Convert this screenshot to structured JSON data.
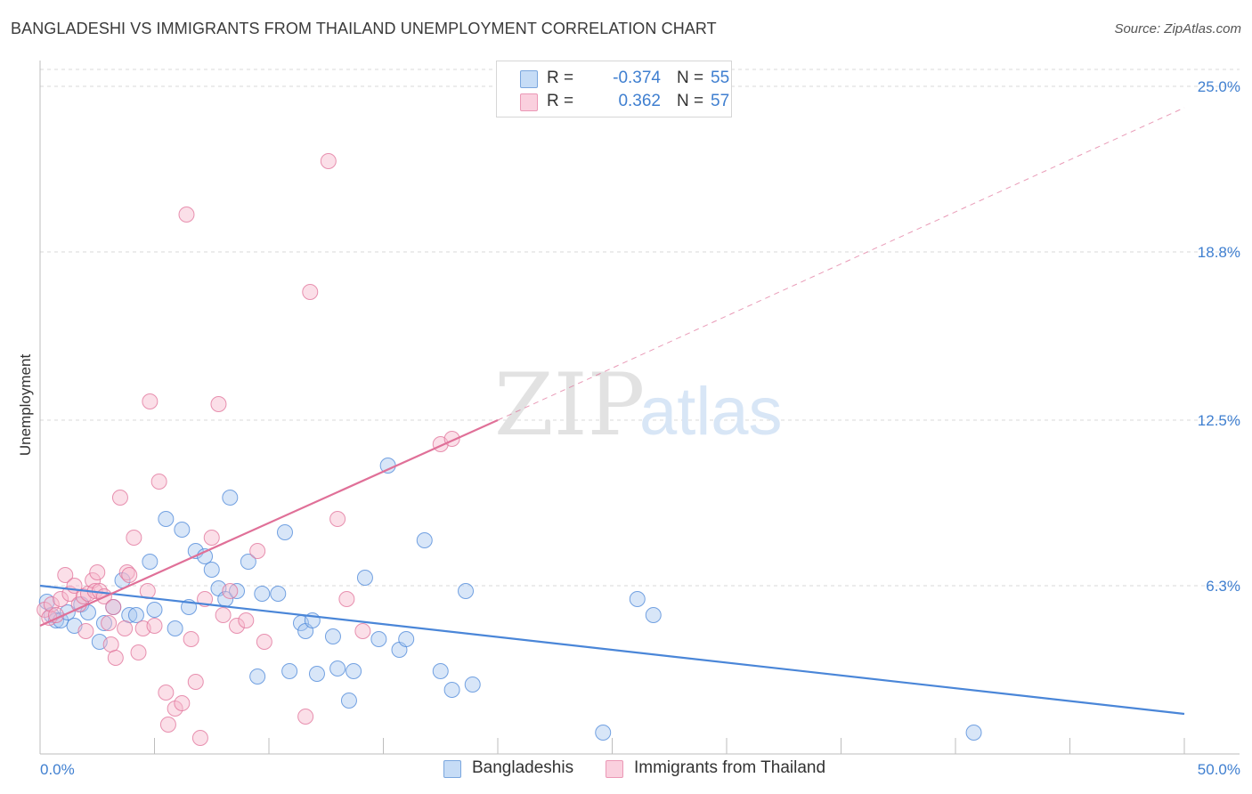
{
  "title": "BANGLADESHI VS IMMIGRANTS FROM THAILAND UNEMPLOYMENT CORRELATION CHART",
  "source": "Source: ZipAtlas.com",
  "watermark": {
    "zip": "ZIP",
    "atlas": "atlas"
  },
  "legend": {
    "rows": [
      {
        "r_label": "R =",
        "r_value": "-0.374",
        "n_label": "N =",
        "n_value": "55",
        "color": "#a9c8f0"
      },
      {
        "r_label": "R =",
        "r_value": "0.362",
        "n_label": "N =",
        "n_value": "57",
        "color": "#f6b8cc"
      }
    ]
  },
  "bottom_legend": [
    {
      "label": "Bangladeshis",
      "color": "#a9c8f0"
    },
    {
      "label": "Immigrants from Thailand",
      "color": "#f6b8cc"
    }
  ],
  "chart_data": {
    "type": "scatter",
    "title": "BANGLADESHI VS IMMIGRANTS FROM THAILAND UNEMPLOYMENT CORRELATION CHART",
    "xlabel": "",
    "ylabel": "Unemployment",
    "xlim": [
      0,
      50
    ],
    "ylim": [
      0,
      25.0
    ],
    "x_tick_labels": [
      "0.0%",
      "50.0%"
    ],
    "y_ticks": [
      6.3,
      12.5,
      18.8,
      25.0
    ],
    "y_tick_labels": [
      "6.3%",
      "12.5%",
      "18.8%",
      "25.0%"
    ],
    "grid": "horizontal dashed",
    "legend_position": "top-center",
    "series": [
      {
        "name": "Bangladeshis",
        "color": "#4a86d8",
        "fill": "#a9c8f0",
        "trend": {
          "x": [
            0,
            50
          ],
          "y": [
            6.3,
            1.5
          ]
        },
        "points": [
          [
            0.3,
            5.7
          ],
          [
            0.5,
            5.2
          ],
          [
            0.7,
            5.0
          ],
          [
            0.9,
            5.0
          ],
          [
            1.2,
            5.3
          ],
          [
            1.5,
            4.8
          ],
          [
            1.8,
            5.6
          ],
          [
            2.1,
            5.3
          ],
          [
            2.6,
            4.2
          ],
          [
            2.8,
            4.9
          ],
          [
            3.2,
            5.5
          ],
          [
            3.6,
            6.5
          ],
          [
            3.9,
            5.2
          ],
          [
            4.2,
            5.2
          ],
          [
            4.8,
            7.2
          ],
          [
            5.0,
            5.4
          ],
          [
            5.5,
            8.8
          ],
          [
            5.9,
            4.7
          ],
          [
            6.2,
            8.4
          ],
          [
            6.5,
            5.5
          ],
          [
            6.8,
            7.6
          ],
          [
            7.2,
            7.4
          ],
          [
            7.5,
            6.9
          ],
          [
            7.8,
            6.2
          ],
          [
            8.1,
            5.8
          ],
          [
            8.3,
            9.6
          ],
          [
            8.6,
            6.1
          ],
          [
            9.1,
            7.2
          ],
          [
            9.5,
            2.9
          ],
          [
            9.7,
            6.0
          ],
          [
            10.4,
            6.0
          ],
          [
            10.7,
            8.3
          ],
          [
            10.9,
            3.1
          ],
          [
            11.4,
            4.9
          ],
          [
            11.6,
            4.6
          ],
          [
            11.9,
            5.0
          ],
          [
            12.1,
            3.0
          ],
          [
            12.8,
            4.4
          ],
          [
            13.0,
            3.2
          ],
          [
            13.5,
            2.0
          ],
          [
            13.7,
            3.1
          ],
          [
            14.2,
            6.6
          ],
          [
            14.8,
            4.3
          ],
          [
            15.2,
            10.8
          ],
          [
            15.7,
            3.9
          ],
          [
            16.0,
            4.3
          ],
          [
            16.8,
            8.0
          ],
          [
            17.5,
            3.1
          ],
          [
            18.0,
            2.4
          ],
          [
            18.6,
            6.1
          ],
          [
            18.9,
            2.6
          ],
          [
            24.6,
            0.8
          ],
          [
            26.1,
            5.8
          ],
          [
            26.8,
            5.2
          ],
          [
            40.8,
            0.8
          ]
        ]
      },
      {
        "name": "Immigrants from Thailand",
        "color": "#e07098",
        "fill": "#f6b8cc",
        "trend": {
          "x": [
            0,
            20
          ],
          "y": [
            4.8,
            12.5
          ]
        },
        "trend_extension": {
          "x": [
            20,
            50
          ],
          "y": [
            12.5,
            24.2
          ]
        },
        "points": [
          [
            0.2,
            5.4
          ],
          [
            0.4,
            5.1
          ],
          [
            0.5,
            5.6
          ],
          [
            0.7,
            5.2
          ],
          [
            0.9,
            5.8
          ],
          [
            1.1,
            6.7
          ],
          [
            1.3,
            6.0
          ],
          [
            1.5,
            6.3
          ],
          [
            1.7,
            5.6
          ],
          [
            1.9,
            5.9
          ],
          [
            2.0,
            4.6
          ],
          [
            2.1,
            6.0
          ],
          [
            2.3,
            6.5
          ],
          [
            2.4,
            6.1
          ],
          [
            2.5,
            6.8
          ],
          [
            2.6,
            6.1
          ],
          [
            2.8,
            5.9
          ],
          [
            3.0,
            4.9
          ],
          [
            3.1,
            4.1
          ],
          [
            3.2,
            5.5
          ],
          [
            3.3,
            3.6
          ],
          [
            3.5,
            9.6
          ],
          [
            3.7,
            4.7
          ],
          [
            3.8,
            6.8
          ],
          [
            3.9,
            6.7
          ],
          [
            4.1,
            8.1
          ],
          [
            4.3,
            3.8
          ],
          [
            4.5,
            4.7
          ],
          [
            4.7,
            6.1
          ],
          [
            4.8,
            13.2
          ],
          [
            5.0,
            4.8
          ],
          [
            5.2,
            10.2
          ],
          [
            5.5,
            2.3
          ],
          [
            5.6,
            1.1
          ],
          [
            5.9,
            1.7
          ],
          [
            6.2,
            1.9
          ],
          [
            6.4,
            20.2
          ],
          [
            6.6,
            4.3
          ],
          [
            6.8,
            2.7
          ],
          [
            7.0,
            0.6
          ],
          [
            7.2,
            5.8
          ],
          [
            7.5,
            8.1
          ],
          [
            7.8,
            13.1
          ],
          [
            8.0,
            5.2
          ],
          [
            8.3,
            6.1
          ],
          [
            8.6,
            4.8
          ],
          [
            9.0,
            5.0
          ],
          [
            9.5,
            7.6
          ],
          [
            9.8,
            4.2
          ],
          [
            11.6,
            1.4
          ],
          [
            11.8,
            17.3
          ],
          [
            12.6,
            22.2
          ],
          [
            13.0,
            8.8
          ],
          [
            13.4,
            5.8
          ],
          [
            14.1,
            4.6
          ],
          [
            17.5,
            11.6
          ],
          [
            18.0,
            11.8
          ]
        ]
      }
    ]
  }
}
